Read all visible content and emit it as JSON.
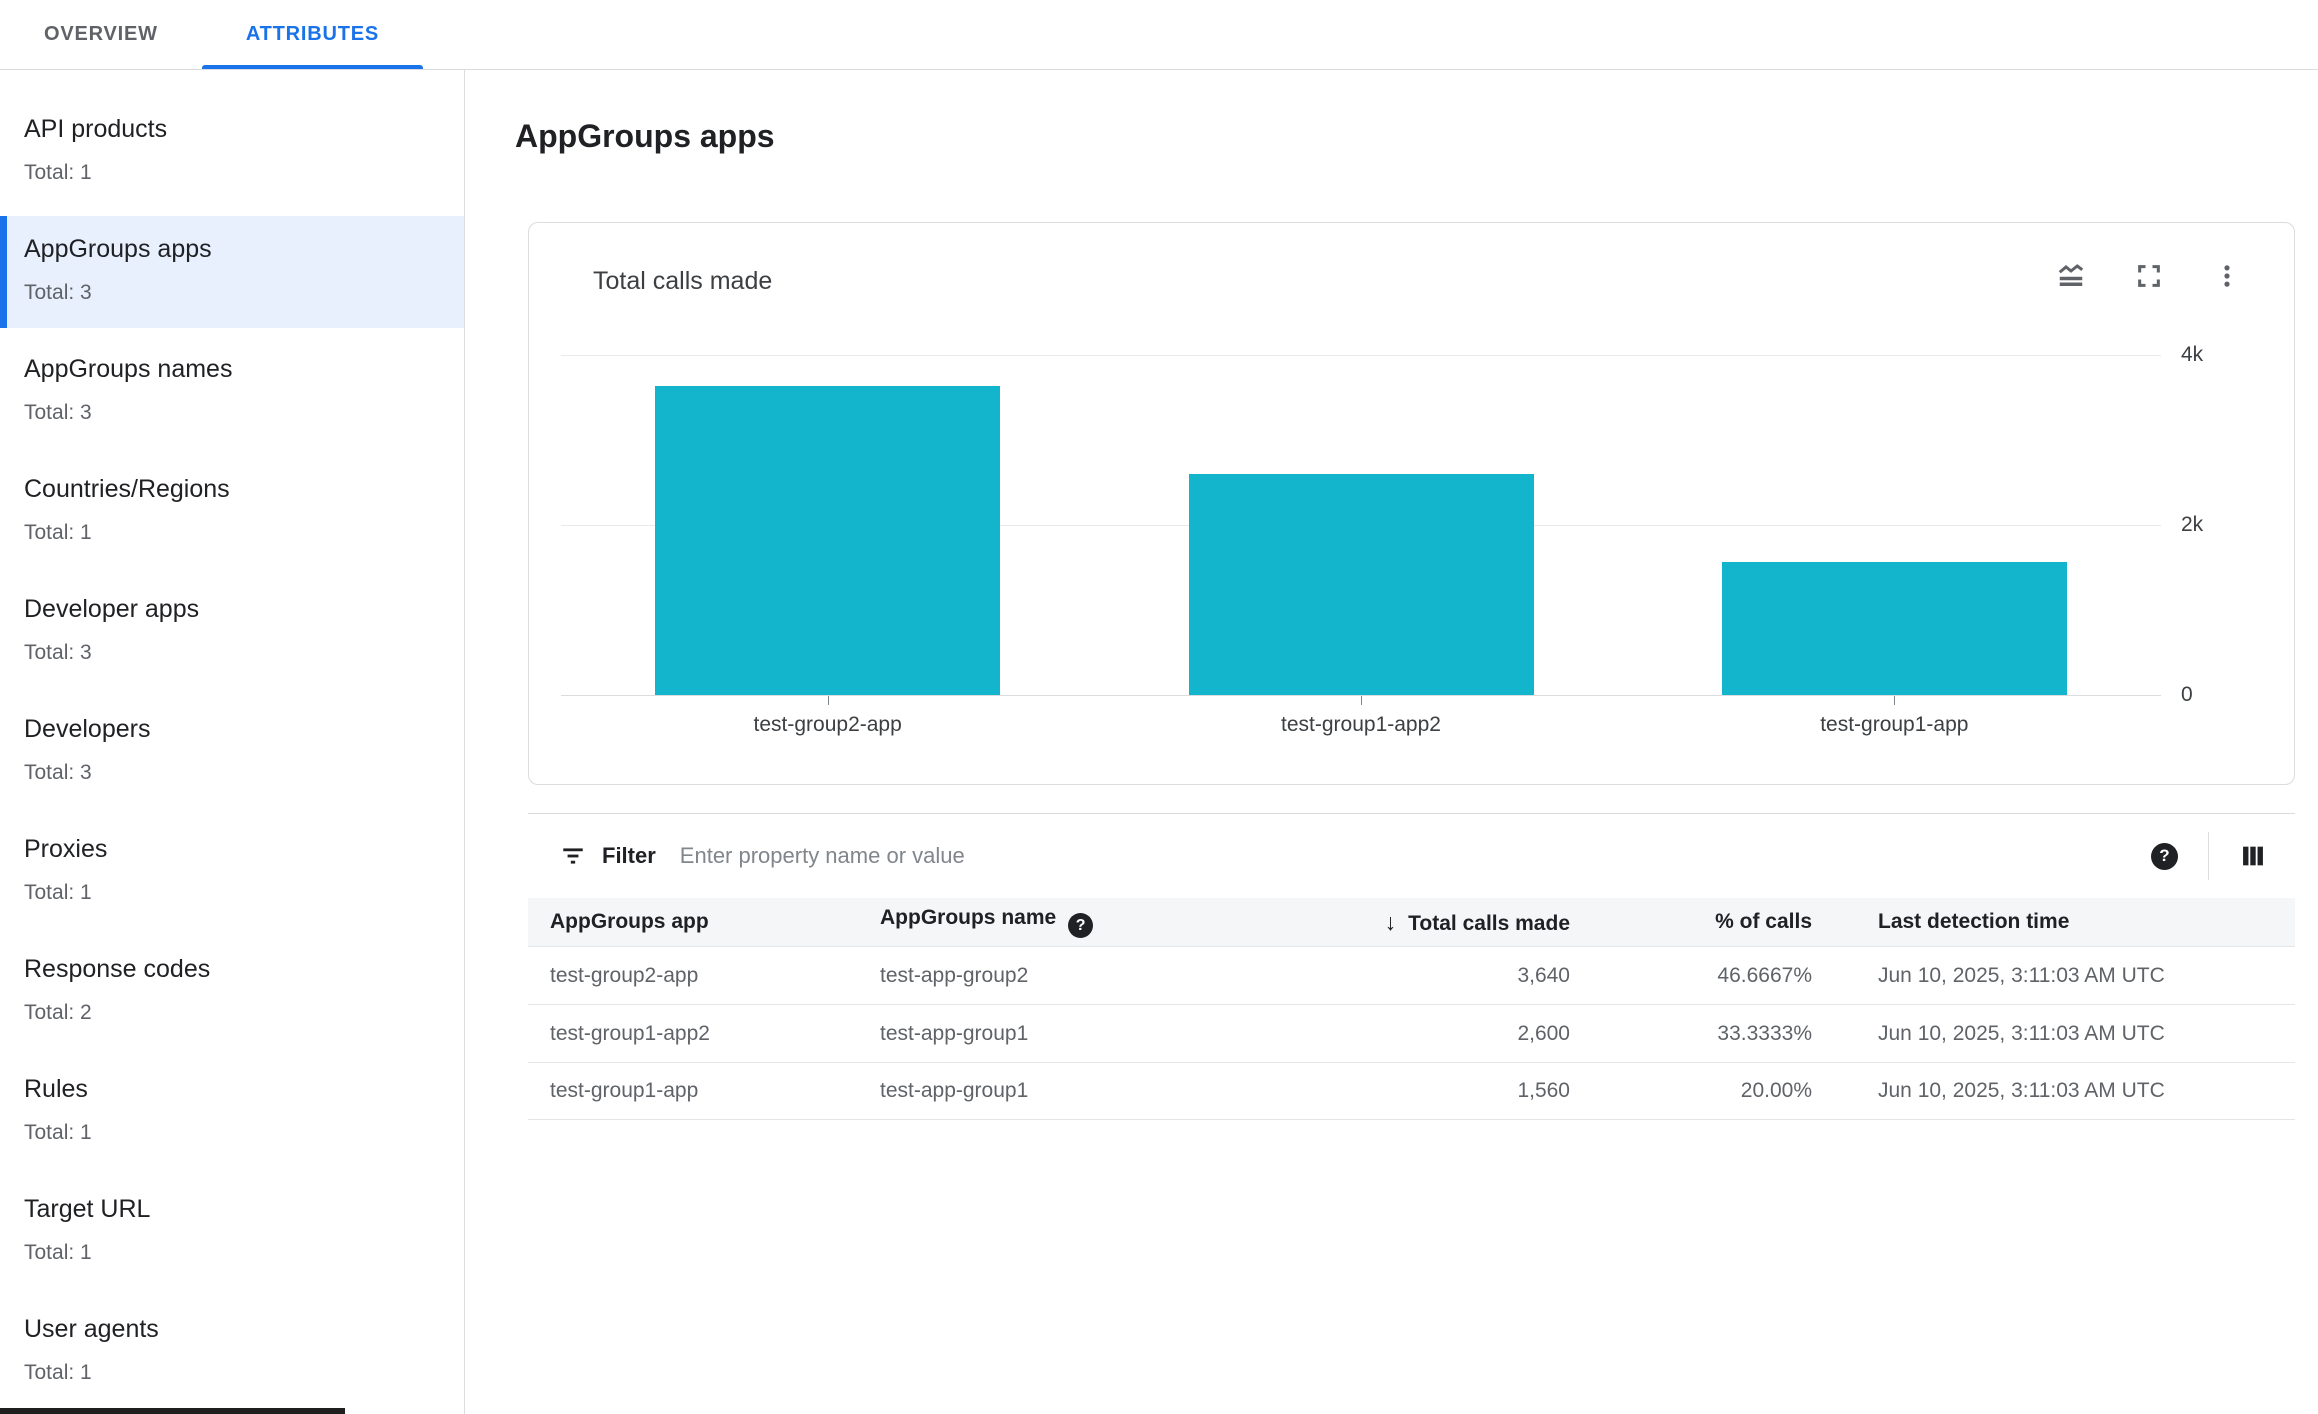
{
  "tabs": [
    {
      "label": "OVERVIEW",
      "active": false
    },
    {
      "label": "ATTRIBUTES",
      "active": true
    }
  ],
  "sidebar": {
    "items": [
      {
        "label": "API products",
        "total": "Total: 1",
        "selected": false
      },
      {
        "label": "AppGroups apps",
        "total": "Total: 3",
        "selected": true
      },
      {
        "label": "AppGroups names",
        "total": "Total: 3",
        "selected": false
      },
      {
        "label": "Countries/Regions",
        "total": "Total: 1",
        "selected": false
      },
      {
        "label": "Developer apps",
        "total": "Total: 3",
        "selected": false
      },
      {
        "label": "Developers",
        "total": "Total: 3",
        "selected": false
      },
      {
        "label": "Proxies",
        "total": "Total: 1",
        "selected": false
      },
      {
        "label": "Response codes",
        "total": "Total: 2",
        "selected": false
      },
      {
        "label": "Rules",
        "total": "Total: 1",
        "selected": false
      },
      {
        "label": "Target URL",
        "total": "Total: 1",
        "selected": false
      },
      {
        "label": "User agents",
        "total": "Total: 1",
        "selected": false
      }
    ]
  },
  "page": {
    "title": "AppGroups apps"
  },
  "chart_card": {
    "title": "Total calls made",
    "icons": [
      "chart-style-icon",
      "fullscreen-icon",
      "more-options-icon"
    ],
    "chart_data": {
      "type": "bar",
      "title": "Total calls made",
      "categories": [
        "test-group2-app",
        "test-group1-app2",
        "test-group1-app"
      ],
      "values": [
        3640,
        2600,
        1560
      ],
      "xlabel": "",
      "ylabel": "",
      "ylim": [
        0,
        4000
      ],
      "yticks": [
        {
          "value": 4000,
          "label": "4k"
        },
        {
          "value": 2000,
          "label": "2k"
        },
        {
          "value": 0,
          "label": "0"
        }
      ],
      "bar_color": "#12b5cb",
      "grid": true,
      "legend": false
    }
  },
  "filter": {
    "label": "Filter",
    "placeholder": "Enter property name or value",
    "help_glyph": "?"
  },
  "table": {
    "sort_arrow": "↓",
    "columns": [
      {
        "label": "AppGroups app",
        "align": "left"
      },
      {
        "label": "AppGroups name",
        "align": "left",
        "help_icon": true
      },
      {
        "label": "Total calls made",
        "align": "right",
        "sorted": "desc"
      },
      {
        "label": "% of calls",
        "align": "right"
      },
      {
        "label": "Last detection time",
        "align": "left"
      }
    ],
    "rows": [
      [
        "test-group2-app",
        "test-app-group2",
        "3,640",
        "46.6667%",
        "Jun 10, 2025, 3:11:03 AM UTC"
      ],
      [
        "test-group1-app2",
        "test-app-group1",
        "2,600",
        "33.3333%",
        "Jun 10, 2025, 3:11:03 AM UTC"
      ],
      [
        "test-group1-app",
        "test-app-group1",
        "1,560",
        "20.00%",
        "Jun 10, 2025, 3:11:03 AM UTC"
      ]
    ]
  },
  "colors": {
    "accent": "#1a73e8",
    "bar": "#12b5cb",
    "selected_bg": "#e8f0fe"
  }
}
